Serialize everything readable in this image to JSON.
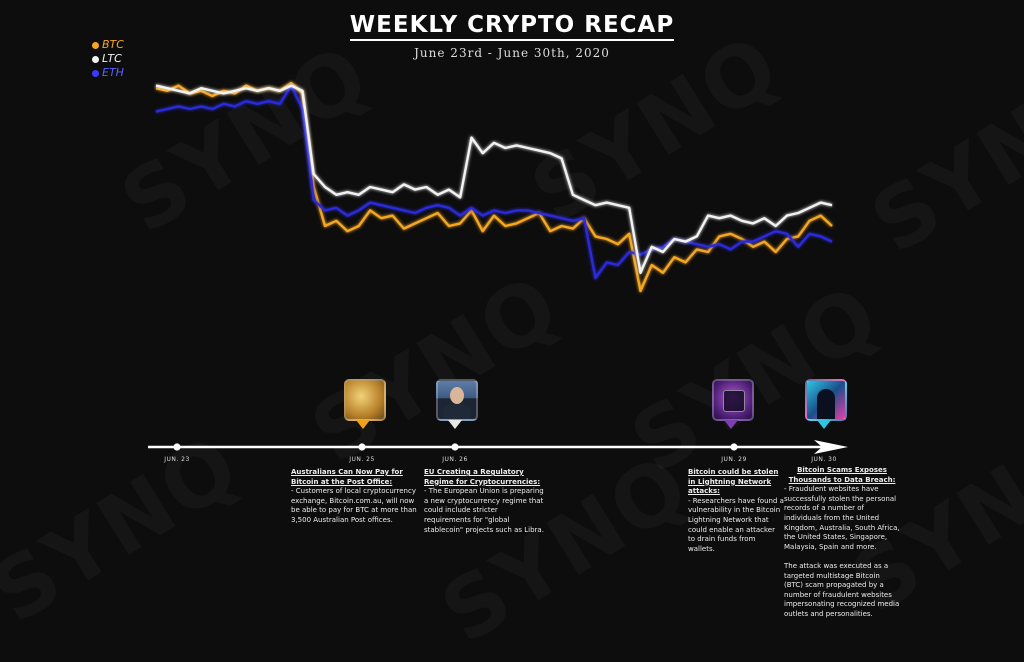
{
  "watermark": "SYNQ",
  "title": "WEEKLY CRYPTO RECAP",
  "subtitle": "June 23rd - June 30th, 2020",
  "legend": [
    {
      "label": "BTC",
      "color": "#f5a623"
    },
    {
      "label": "LTC",
      "color": "#f2f2f2"
    },
    {
      "label": "ETH",
      "color": "#2b2bd9"
    }
  ],
  "chart_data": {
    "type": "line",
    "x_start": "Jun. 23",
    "x_end": "Jun. 30",
    "ylim": [
      0,
      100
    ],
    "grid": false,
    "legend_position": "top-left",
    "series": [
      {
        "name": "BTC",
        "color": "#f5a623",
        "values": [
          93,
          92,
          94,
          91,
          92,
          90,
          92,
          91,
          94,
          92,
          93,
          92,
          95,
          91,
          55,
          40,
          42,
          38,
          40,
          46,
          43,
          44,
          39,
          41,
          43,
          45,
          40,
          41,
          46,
          38,
          44,
          40,
          41,
          43,
          45,
          38,
          40,
          39,
          43,
          36,
          35,
          33,
          37,
          15,
          25,
          22,
          28,
          26,
          31,
          30,
          36,
          37,
          35,
          32,
          34,
          30,
          35,
          36,
          42,
          44,
          40
        ]
      },
      {
        "name": "LTC",
        "color": "#f2f2f2",
        "values": [
          94,
          93,
          92,
          91,
          93,
          92,
          91,
          92,
          93,
          92,
          93,
          92,
          94,
          92,
          60,
          55,
          52,
          53,
          52,
          55,
          54,
          53,
          56,
          54,
          55,
          52,
          54,
          51,
          74,
          68,
          72,
          70,
          71,
          70,
          69,
          68,
          66,
          52,
          50,
          48,
          49,
          48,
          47,
          22,
          32,
          30,
          35,
          34,
          36,
          44,
          43,
          44,
          42,
          41,
          43,
          40,
          44,
          45,
          47,
          49,
          48
        ]
      },
      {
        "name": "ETH",
        "color": "#2b2bd9",
        "values": [
          84,
          85,
          86,
          85,
          86,
          85,
          87,
          86,
          88,
          87,
          88,
          87,
          94,
          85,
          50,
          46,
          47,
          44,
          46,
          49,
          48,
          47,
          46,
          45,
          47,
          48,
          47,
          44,
          47,
          44,
          46,
          45,
          46,
          46,
          45,
          44,
          43,
          42,
          43,
          20,
          26,
          25,
          30,
          29,
          31,
          32,
          35,
          34,
          33,
          32,
          33,
          31,
          34,
          34,
          36,
          38,
          37,
          32,
          37,
          36,
          34
        ]
      }
    ]
  },
  "timeline": {
    "ticks": [
      {
        "label": "Jun. 23"
      },
      {
        "label": "Jun. 25"
      },
      {
        "label": "Jun. 26"
      },
      {
        "label": "Jun. 29"
      },
      {
        "label": "Jun. 30"
      }
    ],
    "events": [
      {
        "image": "australia-post-image",
        "pin_color": "#f0a21a",
        "heading": "Australians Can Now Pay for Bitcoin at the Post Office:",
        "body": "- Customers of local cryptocurrency exchange, Bitcoin.com.au, will now be able to pay for BTC at more than 3,500 Australian Post offices."
      },
      {
        "image": "eu-official-portrait",
        "pin_color": "#e8e8e8",
        "heading": "EU Creating a Regulatory Regime for Cryptocurrencies:",
        "body": "- The European Union is preparing a new cryptocurrency regime that could include stricter requirements for \"global stablecoin\" projects such as Libra."
      },
      {
        "image": "lightning-network-image",
        "pin_color": "#7b3fb0",
        "heading": "Bitcoin could be stolen in Lightning Network attacks:",
        "body": "- Researchers have found a vulnerability in the Bitcoin Lightning Network that could enable an attacker to drain funds from wallets."
      },
      {
        "image": "scam-hacker-image",
        "pin_color": "#2fc6e6",
        "heading": "Bitcoin Scams Exposes Thousands to Data Breach:",
        "body": "- Fraudulent websites have successfully stolen the personal records of a number of individuals from the United Kingdom, Australia, South Africa, the United States, Singapore, Malaysia, Spain and more.\n\nThe attack was executed as a targeted multistage Bitcoin (BTC) scam propagated by a number of fraudulent websites impersonating recognized media outlets and personalities."
      }
    ]
  }
}
